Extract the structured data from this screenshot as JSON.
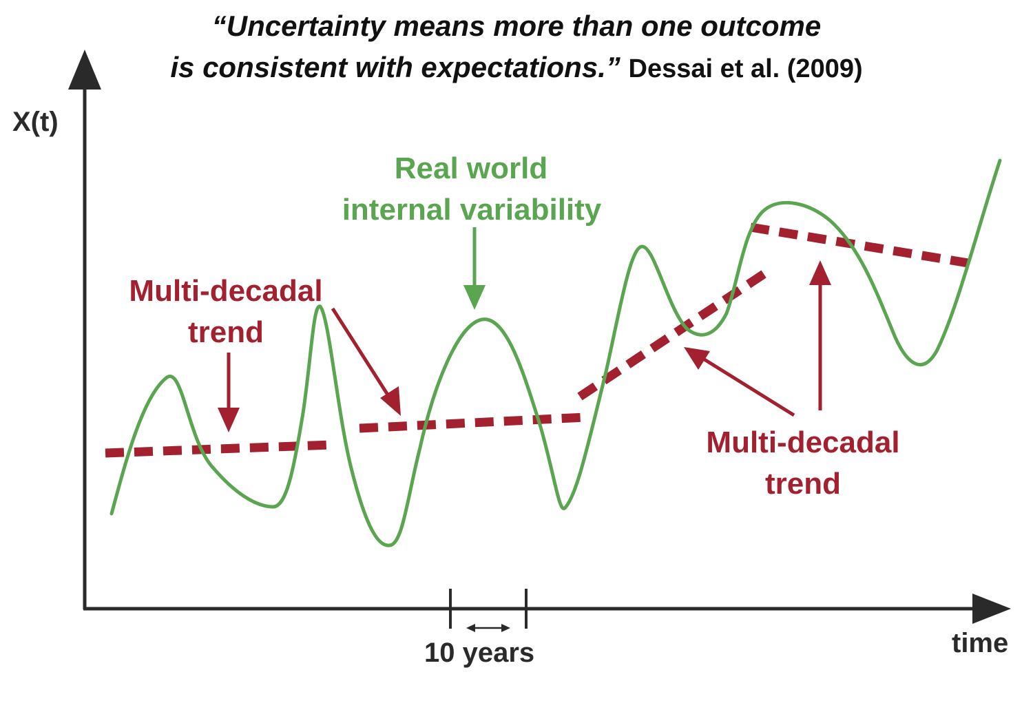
{
  "quote": {
    "line1": "“Uncertainty means more than one outcome",
    "line2": "is consistent with expectations.”",
    "citation": "Dessai et al. (2009)"
  },
  "axes": {
    "y_label": "X(t)",
    "x_label": "time",
    "interval_label": "10 years"
  },
  "labels": {
    "variability_line1": "Real world",
    "variability_line2": "internal variability",
    "trend_left_line1": "Multi-decadal",
    "trend_left_line2": "trend",
    "trend_right_line1": "Multi-decadal",
    "trend_right_line2": "trend"
  },
  "colors": {
    "variability": "#5aa54f",
    "trend": "#a3212f",
    "axis": "#2a2a2a"
  }
}
